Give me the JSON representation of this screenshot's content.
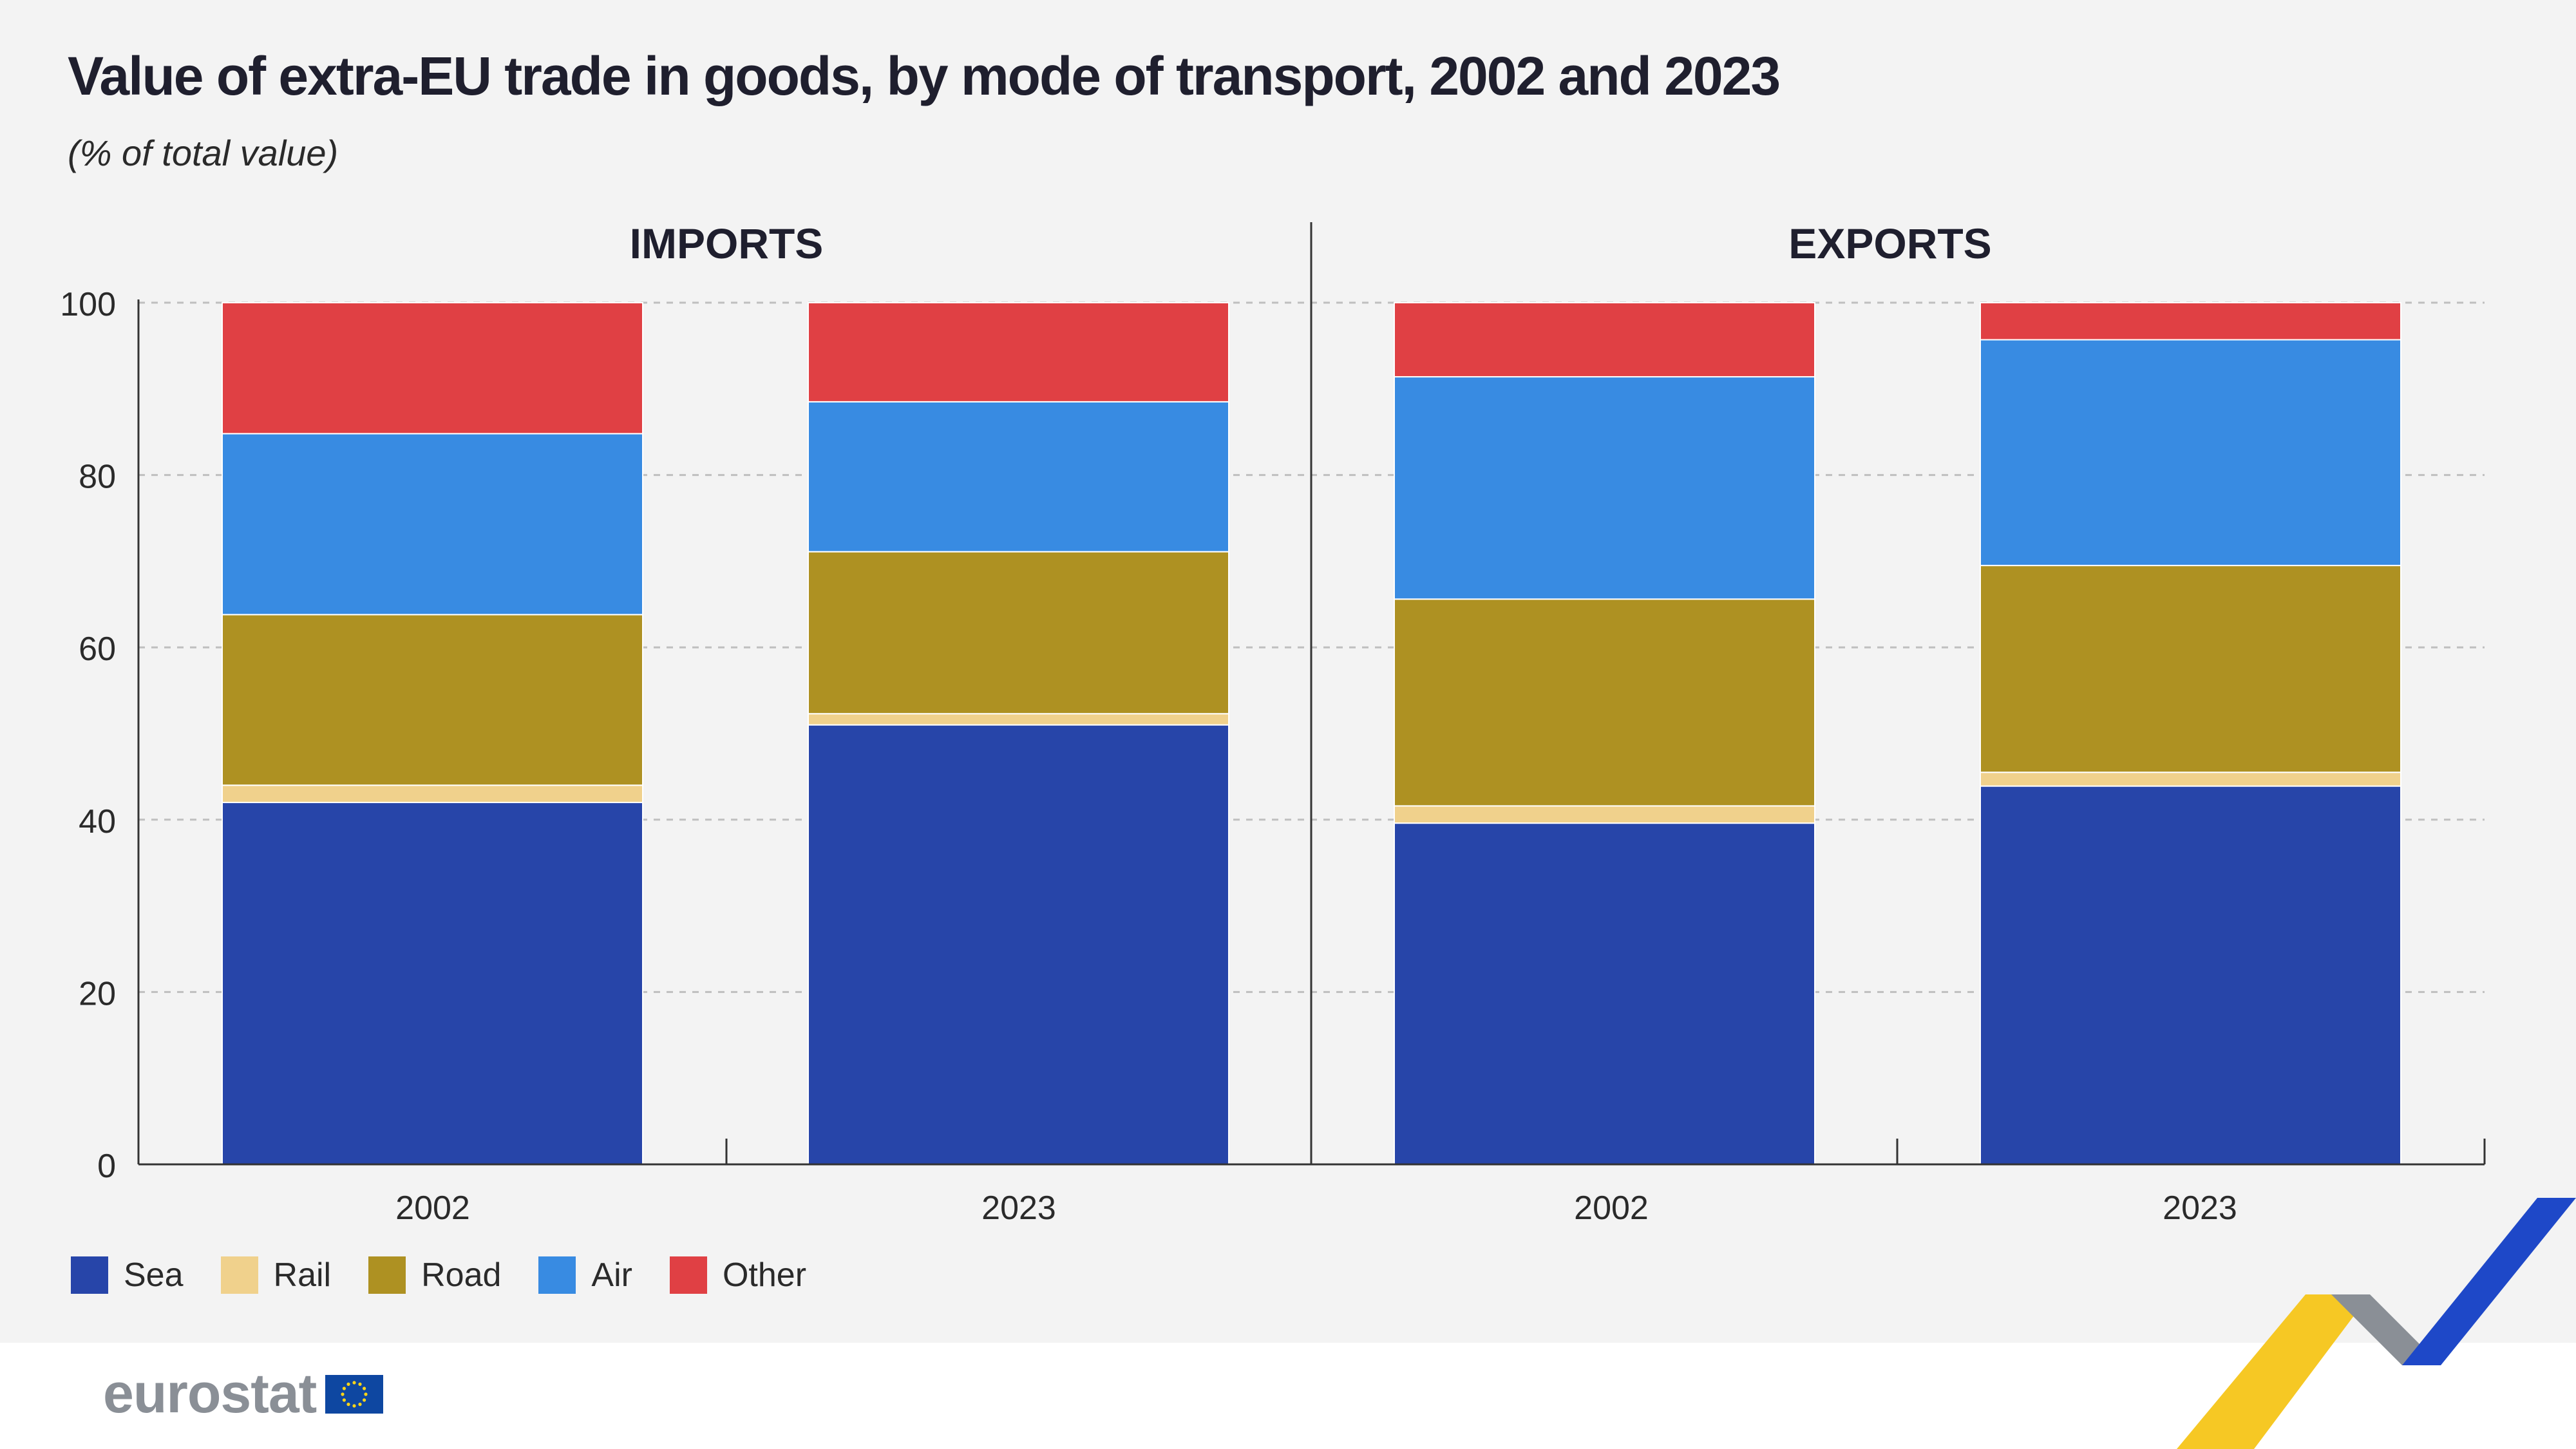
{
  "title": "Value of extra-EU trade in goods, by mode of transport, 2002 and 2023",
  "subtitle": "(% of total value)",
  "colors": {
    "sea": "#2745a9",
    "rail": "#f0d18c",
    "road": "#ae9122",
    "air": "#388be2",
    "other": "#e04044",
    "grid": "#bfbfbf",
    "axis": "#333333",
    "text": "#2a2a2a"
  },
  "legend": [
    {
      "key": "sea",
      "label": "Sea"
    },
    {
      "key": "rail",
      "label": "Rail"
    },
    {
      "key": "road",
      "label": "Road"
    },
    {
      "key": "air",
      "label": "Air"
    },
    {
      "key": "other",
      "label": "Other"
    }
  ],
  "logo": {
    "text": "eurostat",
    "icon": "eu-flag-icon"
  },
  "chart_data": [
    {
      "type": "bar",
      "stacked": true,
      "title": "IMPORTS",
      "categories": [
        "2002",
        "2023"
      ],
      "ylim": [
        0,
        100
      ],
      "yticks": [
        0,
        20,
        40,
        60,
        80,
        100
      ],
      "grid": true,
      "series": [
        {
          "name": "Sea",
          "key": "sea",
          "values": [
            42.0,
            51.0
          ]
        },
        {
          "name": "Rail",
          "key": "rail",
          "values": [
            2.0,
            1.3
          ]
        },
        {
          "name": "Road",
          "key": "road",
          "values": [
            19.8,
            18.8
          ]
        },
        {
          "name": "Air",
          "key": "air",
          "values": [
            21.0,
            17.4
          ]
        },
        {
          "name": "Other",
          "key": "other",
          "values": [
            15.2,
            11.5
          ]
        }
      ]
    },
    {
      "type": "bar",
      "stacked": true,
      "title": "EXPORTS",
      "categories": [
        "2002",
        "2023"
      ],
      "ylim": [
        0,
        100
      ],
      "yticks": [
        0,
        20,
        40,
        60,
        80,
        100
      ],
      "grid": true,
      "series": [
        {
          "name": "Sea",
          "key": "sea",
          "values": [
            39.6,
            43.9
          ]
        },
        {
          "name": "Rail",
          "key": "rail",
          "values": [
            2.0,
            1.6
          ]
        },
        {
          "name": "Road",
          "key": "road",
          "values": [
            24.0,
            24.0
          ]
        },
        {
          "name": "Air",
          "key": "air",
          "values": [
            25.8,
            26.2
          ]
        },
        {
          "name": "Other",
          "key": "other",
          "values": [
            8.6,
            4.3
          ]
        }
      ]
    }
  ]
}
